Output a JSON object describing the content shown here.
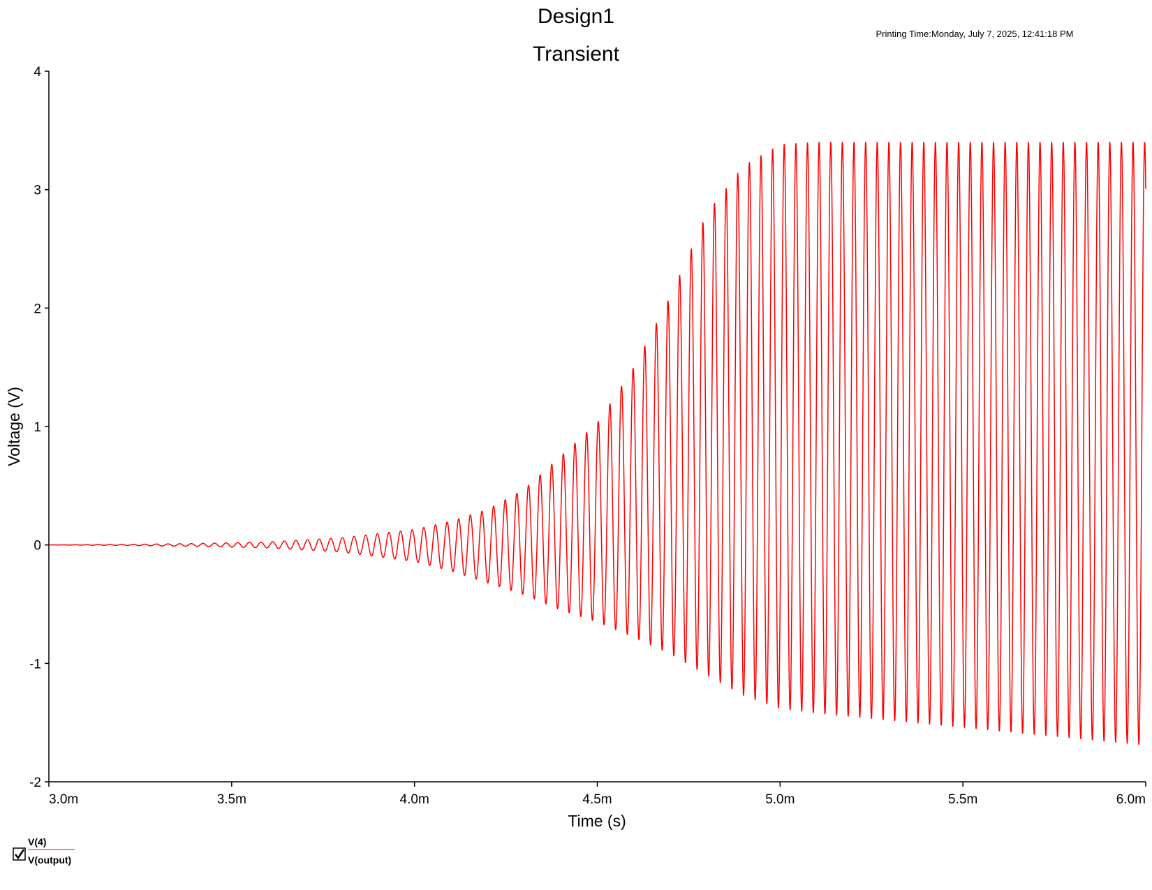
{
  "header": {
    "title": "Design1",
    "subtitle": "Transient",
    "printing_time": "Printing Time:Monday, July 7, 2025, 12:41:18 PM"
  },
  "colors": {
    "trace": "#ff0000",
    "axis": "#000000",
    "background": "#ffffff"
  },
  "legend": {
    "checked": true,
    "entry_top": "V(4)",
    "entry_bottom": "V(output)"
  },
  "chart_data": {
    "type": "line",
    "xlabel": "Time (s)",
    "ylabel": "Voltage (V)",
    "xlim": [
      0.003,
      0.006
    ],
    "ylim": [
      -2,
      4
    ],
    "x_ticks": [
      {
        "value": 0.003,
        "label": "3.0m"
      },
      {
        "value": 0.0035,
        "label": "3.5m"
      },
      {
        "value": 0.004,
        "label": "4.0m"
      },
      {
        "value": 0.0045,
        "label": "4.5m"
      },
      {
        "value": 0.005,
        "label": "5.0m"
      },
      {
        "value": 0.0055,
        "label": "5.5m"
      },
      {
        "value": 0.006,
        "label": "6.0m"
      }
    ],
    "y_ticks": [
      {
        "value": 4,
        "label": "4"
      },
      {
        "value": 3,
        "label": "3"
      },
      {
        "value": 2,
        "label": "2"
      },
      {
        "value": 1,
        "label": "1"
      },
      {
        "value": 0,
        "label": "0"
      },
      {
        "value": -1,
        "label": "-1"
      },
      {
        "value": -2,
        "label": "-2"
      }
    ],
    "grid": false,
    "legend_position": "bottom-left",
    "series": [
      {
        "name": "V(4)",
        "period_s": 3.18e-05,
        "envelope": [
          {
            "t": 0.003,
            "max": 0.0,
            "min": 0.0
          },
          {
            "t": 0.0032,
            "max": 0.004,
            "min": -0.004
          },
          {
            "t": 0.0034,
            "max": 0.012,
            "min": -0.012
          },
          {
            "t": 0.0036,
            "max": 0.025,
            "min": -0.025
          },
          {
            "t": 0.0038,
            "max": 0.06,
            "min": -0.06
          },
          {
            "t": 0.004,
            "max": 0.13,
            "min": -0.14
          },
          {
            "t": 0.0041,
            "max": 0.2,
            "min": -0.22
          },
          {
            "t": 0.0042,
            "max": 0.3,
            "min": -0.32
          },
          {
            "t": 0.0043,
            "max": 0.47,
            "min": -0.42
          },
          {
            "t": 0.0044,
            "max": 0.75,
            "min": -0.55
          },
          {
            "t": 0.0045,
            "max": 1.03,
            "min": -0.65
          },
          {
            "t": 0.0046,
            "max": 1.5,
            "min": -0.78
          },
          {
            "t": 0.0047,
            "max": 2.1,
            "min": -0.92
          },
          {
            "t": 0.0048,
            "max": 2.8,
            "min": -1.1
          },
          {
            "t": 0.0049,
            "max": 3.2,
            "min": -1.27
          },
          {
            "t": 0.005,
            "max": 3.38,
            "min": -1.38
          },
          {
            "t": 0.0051,
            "max": 3.4,
            "min": -1.42
          },
          {
            "t": 0.0053,
            "max": 3.4,
            "min": -1.48
          },
          {
            "t": 0.0055,
            "max": 3.4,
            "min": -1.54
          },
          {
            "t": 0.0057,
            "max": 3.4,
            "min": -1.6
          },
          {
            "t": 0.006,
            "max": 3.4,
            "min": -1.69
          }
        ]
      }
    ]
  }
}
